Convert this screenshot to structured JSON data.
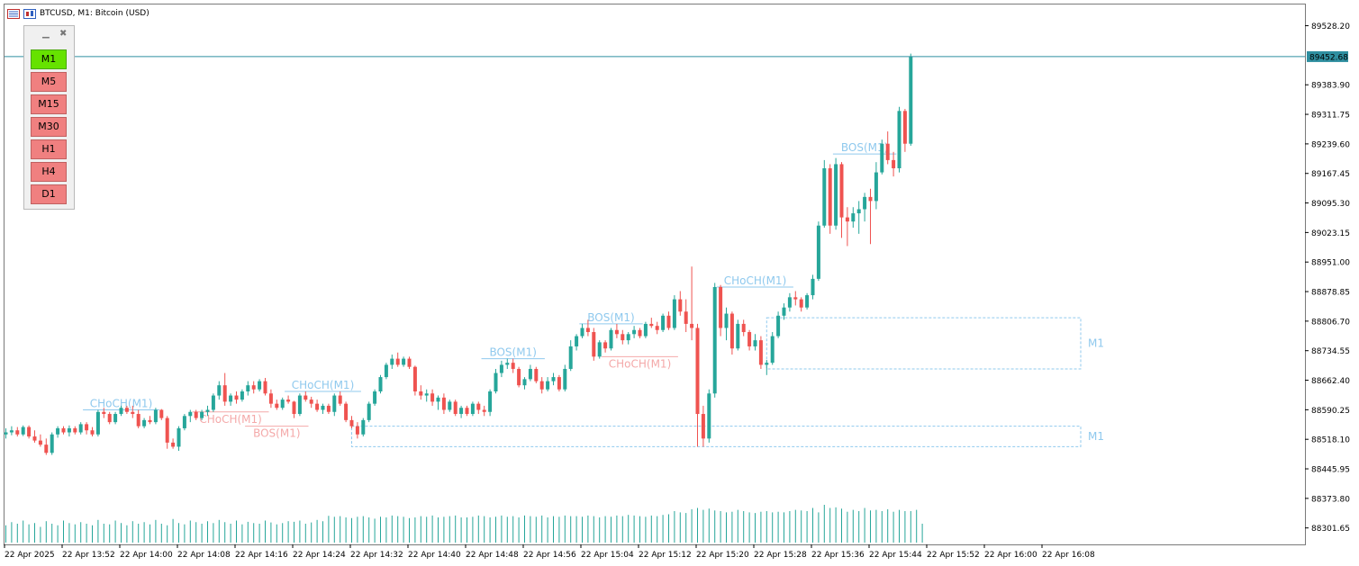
{
  "header": {
    "title": "BTCUSD, M1:  Bitcoin (USD)"
  },
  "timeframe_panel": {
    "buttons": [
      "M1",
      "M5",
      "M15",
      "M30",
      "H1",
      "H4",
      "D1"
    ],
    "active": "M1"
  },
  "colors": {
    "bull": "#26a69a",
    "bear": "#ef5350",
    "bos_bull_label": "#8fc9ee",
    "bos_bear_label": "#f4a9a9",
    "ob_box": "#8fc9ee",
    "current_price_line": "#2f8fa0",
    "volume": "#26a69a",
    "active_button": "#66e200",
    "inactive_button": "#f08080"
  },
  "chart_data": {
    "type": "candlestick",
    "symbol": "BTCUSD",
    "timeframe": "M1",
    "y_ticks": [
      89528.2,
      89383.9,
      89311.75,
      89239.6,
      89167.45,
      89095.3,
      89023.15,
      88951.0,
      88878.85,
      88806.7,
      88734.55,
      88662.4,
      88590.25,
      88518.1,
      88445.95,
      88373.8,
      88301.65
    ],
    "y_tick_labels": [
      "89528.20",
      "89383.90",
      "89311.75",
      "89239.60",
      "89167.45",
      "89095.30",
      "89023.15",
      "88951.00",
      "88878.85",
      "88806.70",
      "88734.55",
      "88662.40",
      "88590.25",
      "88518.10",
      "88445.95",
      "88373.80",
      "88301.65"
    ],
    "ylim": [
      88268,
      89580
    ],
    "current_price": 89452.68,
    "current_price_label": "89452.68",
    "x_tick_labels": [
      "22 Apr 2025",
      "22 Apr 13:52",
      "22 Apr 14:00",
      "22 Apr 14:08",
      "22 Apr 14:16",
      "22 Apr 14:24",
      "22 Apr 14:32",
      "22 Apr 14:40",
      "22 Apr 14:48",
      "22 Apr 14:56",
      "22 Apr 15:04",
      "22 Apr 15:12",
      "22 Apr 15:20",
      "22 Apr 15:28",
      "22 Apr 15:36",
      "22 Apr 15:44",
      "22 Apr 15:52",
      "22 Apr 16:00",
      "22 Apr 16:08"
    ],
    "candles": [
      [
        88530,
        88545,
        88520,
        88535
      ],
      [
        88535,
        88550,
        88528,
        88540
      ],
      [
        88540,
        88548,
        88525,
        88530
      ],
      [
        88530,
        88552,
        88526,
        88548
      ],
      [
        88548,
        88552,
        88520,
        88525
      ],
      [
        88525,
        88540,
        88510,
        88515
      ],
      [
        88515,
        88530,
        88500,
        88505
      ],
      [
        88505,
        88520,
        88480,
        88485
      ],
      [
        88485,
        88535,
        88480,
        88530
      ],
      [
        88530,
        88550,
        88522,
        88545
      ],
      [
        88545,
        88550,
        88530,
        88535
      ],
      [
        88535,
        88552,
        88525,
        88545
      ],
      [
        88545,
        88550,
        88530,
        88535
      ],
      [
        88535,
        88560,
        88530,
        88555
      ],
      [
        88555,
        88560,
        88530,
        88540
      ],
      [
        88540,
        88548,
        88525,
        88530
      ],
      [
        88530,
        88590,
        88525,
        88585
      ],
      [
        88585,
        88595,
        88570,
        88580
      ],
      [
        88580,
        88585,
        88555,
        88560
      ],
      [
        88560,
        88585,
        88555,
        88580
      ],
      [
        88580,
        88600,
        88575,
        88595
      ],
      [
        88595,
        88600,
        88580,
        88585
      ],
      [
        88585,
        88600,
        88570,
        88580
      ],
      [
        88580,
        88590,
        88545,
        88550
      ],
      [
        88550,
        88570,
        88545,
        88565
      ],
      [
        88565,
        88575,
        88555,
        88560
      ],
      [
        88560,
        88595,
        88555,
        88590
      ],
      [
        88590,
        88592,
        88565,
        88570
      ],
      [
        88570,
        88575,
        88495,
        88510
      ],
      [
        88510,
        88520,
        88495,
        88500
      ],
      [
        88500,
        88550,
        88490,
        88545
      ],
      [
        88545,
        88580,
        88540,
        88575
      ],
      [
        88575,
        88590,
        88560,
        88585
      ],
      [
        88585,
        88590,
        88565,
        88570
      ],
      [
        88570,
        88590,
        88565,
        88585
      ],
      [
        88585,
        88600,
        88575,
        88590
      ],
      [
        88590,
        88630,
        88585,
        88625
      ],
      [
        88625,
        88660,
        88615,
        88650
      ],
      [
        88650,
        88680,
        88600,
        88610
      ],
      [
        88610,
        88630,
        88600,
        88625
      ],
      [
        88625,
        88635,
        88605,
        88615
      ],
      [
        88615,
        88640,
        88610,
        88635
      ],
      [
        88635,
        88660,
        88625,
        88650
      ],
      [
        88650,
        88660,
        88630,
        88640
      ],
      [
        88640,
        88665,
        88635,
        88660
      ],
      [
        88660,
        88668,
        88625,
        88630
      ],
      [
        88630,
        88640,
        88595,
        88605
      ],
      [
        88605,
        88615,
        88590,
        88595
      ],
      [
        88595,
        88620,
        88590,
        88615
      ],
      [
        88615,
        88625,
        88605,
        88610
      ],
      [
        88610,
        88612,
        88570,
        88580
      ],
      [
        88580,
        88630,
        88575,
        88625
      ],
      [
        88625,
        88635,
        88610,
        88615
      ],
      [
        88615,
        88622,
        88595,
        88605
      ],
      [
        88605,
        88615,
        88585,
        88590
      ],
      [
        88590,
        88605,
        88580,
        88600
      ],
      [
        88600,
        88605,
        88580,
        88585
      ],
      [
        88585,
        88630,
        88575,
        88625
      ],
      [
        88625,
        88635,
        88600,
        88605
      ],
      [
        88605,
        88610,
        88560,
        88565
      ],
      [
        88565,
        88575,
        88545,
        88550
      ],
      [
        88550,
        88560,
        88520,
        88530
      ],
      [
        88530,
        88570,
        88525,
        88565
      ],
      [
        88565,
        88610,
        88560,
        88605
      ],
      [
        88605,
        88640,
        88600,
        88635
      ],
      [
        88635,
        88675,
        88630,
        88670
      ],
      [
        88670,
        88705,
        88665,
        88700
      ],
      [
        88700,
        88725,
        88690,
        88715
      ],
      [
        88715,
        88730,
        88695,
        88700
      ],
      [
        88700,
        88720,
        88695,
        88715
      ],
      [
        88715,
        88720,
        88690,
        88695
      ],
      [
        88695,
        88698,
        88625,
        88635
      ],
      [
        88635,
        88650,
        88615,
        88625
      ],
      [
        88625,
        88640,
        88610,
        88630
      ],
      [
        88630,
        88640,
        88600,
        88610
      ],
      [
        88610,
        88625,
        88590,
        88620
      ],
      [
        88620,
        88630,
        88580,
        88590
      ],
      [
        88590,
        88615,
        88585,
        88610
      ],
      [
        88610,
        88615,
        88575,
        88580
      ],
      [
        88580,
        88600,
        88570,
        88595
      ],
      [
        88595,
        88600,
        88575,
        88580
      ],
      [
        88580,
        88610,
        88575,
        88605
      ],
      [
        88605,
        88610,
        88580,
        88590
      ],
      [
        88590,
        88600,
        88575,
        88585
      ],
      [
        88585,
        88640,
        88575,
        88635
      ],
      [
        88635,
        88690,
        88630,
        88680
      ],
      [
        88680,
        88710,
        88670,
        88700
      ],
      [
        88700,
        88715,
        88690,
        88705
      ],
      [
        88705,
        88715,
        88680,
        88690
      ],
      [
        88690,
        88695,
        88645,
        88650
      ],
      [
        88650,
        88670,
        88640,
        88665
      ],
      [
        88665,
        88700,
        88660,
        88690
      ],
      [
        88690,
        88695,
        88655,
        88660
      ],
      [
        88660,
        88670,
        88630,
        88640
      ],
      [
        88640,
        88670,
        88635,
        88660
      ],
      [
        88660,
        88680,
        88650,
        88670
      ],
      [
        88670,
        88675,
        88635,
        88640
      ],
      [
        88640,
        88700,
        88635,
        88690
      ],
      [
        88690,
        88760,
        88685,
        88745
      ],
      [
        88745,
        88775,
        88735,
        88770
      ],
      [
        88770,
        88800,
        88765,
        88790
      ],
      [
        88790,
        88810,
        88770,
        88780
      ],
      [
        88780,
        88790,
        88710,
        88720
      ],
      [
        88720,
        88760,
        88715,
        88755
      ],
      [
        88755,
        88760,
        88730,
        88740
      ],
      [
        88740,
        88790,
        88735,
        88785
      ],
      [
        88785,
        88800,
        88765,
        88775
      ],
      [
        88775,
        88785,
        88750,
        88760
      ],
      [
        88760,
        88780,
        88750,
        88775
      ],
      [
        88775,
        88795,
        88765,
        88785
      ],
      [
        88785,
        88790,
        88765,
        88770
      ],
      [
        88770,
        88805,
        88765,
        88800
      ],
      [
        88800,
        88815,
        88790,
        88795
      ],
      [
        88795,
        88805,
        88775,
        88785
      ],
      [
        88785,
        88825,
        88780,
        88820
      ],
      [
        88820,
        88830,
        88785,
        88790
      ],
      [
        88790,
        88870,
        88785,
        88860
      ],
      [
        88860,
        88880,
        88820,
        88830
      ],
      [
        88830,
        88860,
        88780,
        88800
      ],
      [
        88800,
        88940,
        88760,
        88790
      ],
      [
        88790,
        88800,
        88500,
        88580
      ],
      [
        88580,
        88600,
        88500,
        88520
      ],
      [
        88520,
        88640,
        88510,
        88630
      ],
      [
        88630,
        88900,
        88620,
        88890
      ],
      [
        88890,
        88895,
        88770,
        88790
      ],
      [
        88790,
        88840,
        88760,
        88825
      ],
      [
        88825,
        88830,
        88725,
        88740
      ],
      [
        88740,
        88810,
        88735,
        88800
      ],
      [
        88800,
        88810,
        88770,
        88780
      ],
      [
        88780,
        88785,
        88735,
        88745
      ],
      [
        88745,
        88775,
        88735,
        88760
      ],
      [
        88760,
        88770,
        88690,
        88700
      ],
      [
        88700,
        88712,
        88675,
        88705
      ],
      [
        88705,
        88780,
        88700,
        88770
      ],
      [
        88770,
        88830,
        88765,
        88820
      ],
      [
        88820,
        88850,
        88810,
        88840
      ],
      [
        88840,
        88875,
        88830,
        88865
      ],
      [
        88865,
        88880,
        88845,
        88860
      ],
      [
        88860,
        88865,
        88830,
        88840
      ],
      [
        88840,
        88875,
        88835,
        88870
      ],
      [
        88870,
        88920,
        88860,
        88910
      ],
      [
        88910,
        89050,
        88905,
        89040
      ],
      [
        89040,
        89200,
        89035,
        89180
      ],
      [
        89180,
        89190,
        89020,
        89040
      ],
      [
        89040,
        89205,
        89030,
        89190
      ],
      [
        89190,
        89195,
        89010,
        89060
      ],
      [
        89060,
        89085,
        88990,
        89050
      ],
      [
        89050,
        89085,
        89035,
        89070
      ],
      [
        89070,
        89100,
        89020,
        89080
      ],
      [
        89080,
        89120,
        89050,
        89110
      ],
      [
        89110,
        89130,
        88995,
        89100
      ],
      [
        89100,
        89195,
        89080,
        89170
      ],
      [
        89170,
        89250,
        89165,
        89240
      ],
      [
        89240,
        89270,
        89190,
        89200
      ],
      [
        89200,
        89220,
        89160,
        89180
      ],
      [
        89180,
        89330,
        89170,
        89320
      ],
      [
        89320,
        89325,
        89220,
        89240
      ],
      [
        89240,
        89460,
        89235,
        89452.68
      ]
    ],
    "volumes": [
      55,
      65,
      60,
      70,
      58,
      62,
      50,
      68,
      60,
      55,
      70,
      62,
      58,
      65,
      60,
      55,
      72,
      60,
      58,
      70,
      62,
      55,
      68,
      60,
      65,
      58,
      72,
      60,
      55,
      75,
      62,
      58,
      70,
      65,
      60,
      68,
      62,
      72,
      65,
      60,
      70,
      58,
      66,
      62,
      60,
      70,
      64,
      58,
      62,
      68,
      66,
      70,
      60,
      64,
      72,
      68,
      85,
      82,
      84,
      80,
      78,
      82,
      84,
      80,
      76,
      82,
      80,
      86,
      84,
      82,
      78,
      80,
      84,
      82,
      86,
      80,
      82,
      84,
      86,
      80,
      80,
      82,
      86,
      84,
      80,
      82,
      86,
      82,
      84,
      80,
      86,
      84,
      82,
      86,
      80,
      84,
      82,
      86,
      84,
      84,
      82,
      86,
      84,
      80,
      84,
      82,
      86,
      84,
      88,
      86,
      84,
      82,
      86,
      84,
      88,
      90,
      100,
      96,
      94,
      106,
      110,
      104,
      108,
      102,
      100,
      96,
      98,
      104,
      100,
      96,
      94,
      98,
      100,
      96,
      98,
      96,
      100,
      104,
      102,
      100,
      110,
      96,
      120,
      110,
      112,
      108,
      98,
      104,
      100,
      110,
      102,
      104,
      100,
      106,
      98,
      104,
      100,
      100,
      104,
      60
    ],
    "annotations": [
      {
        "text": "CHoCH(M1)",
        "type": "bull",
        "index": 20,
        "y": 88590
      },
      {
        "text": "CHoCH(M1)",
        "type": "bear",
        "index": 39,
        "y": 88585
      },
      {
        "text": "BOS(M1)",
        "type": "bear",
        "index": 47,
        "y": 88550
      },
      {
        "text": "CHoCH(M1)",
        "type": "bull",
        "index": 55,
        "y": 88635
      },
      {
        "text": "BOS(M1)",
        "type": "bull",
        "index": 88,
        "y": 88715
      },
      {
        "text": "BOS(M1)",
        "type": "bull",
        "index": 105,
        "y": 88800
      },
      {
        "text": "CHoCH(M1)",
        "type": "bear",
        "index": 110,
        "y": 88720
      },
      {
        "text": "CHoCH(M1)",
        "type": "bull",
        "index": 130,
        "y": 88890
      },
      {
        "text": "BOS(M1)",
        "type": "bull",
        "index": 149,
        "y": 89215
      }
    ],
    "order_blocks": [
      {
        "label": "M1",
        "start_index": 60,
        "top": 88550,
        "bottom": 88500
      },
      {
        "label": "M1",
        "start_index": 132,
        "top": 88815,
        "bottom": 88690
      }
    ]
  }
}
